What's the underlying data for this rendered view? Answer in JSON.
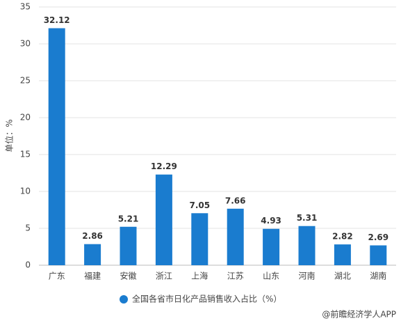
{
  "chart_data": {
    "type": "bar",
    "y_label": "单位：%",
    "categories": [
      "广东",
      "福建",
      "安徽",
      "浙江",
      "上海",
      "江苏",
      "山东",
      "河南",
      "湖北",
      "湖南"
    ],
    "series": [
      {
        "name": "全国各省市日化产品销售收入占比（%）",
        "color": "#1a7ccf",
        "values": [
          32.12,
          2.86,
          5.21,
          12.29,
          7.05,
          7.66,
          4.93,
          5.31,
          2.82,
          2.69
        ]
      }
    ],
    "ylim": [
      0,
      35
    ],
    "yticks": [
      0,
      5,
      10,
      15,
      20,
      25,
      30,
      35
    ],
    "grid": true,
    "legend": "bottom"
  },
  "footer": "@前瞻经济学人APP"
}
